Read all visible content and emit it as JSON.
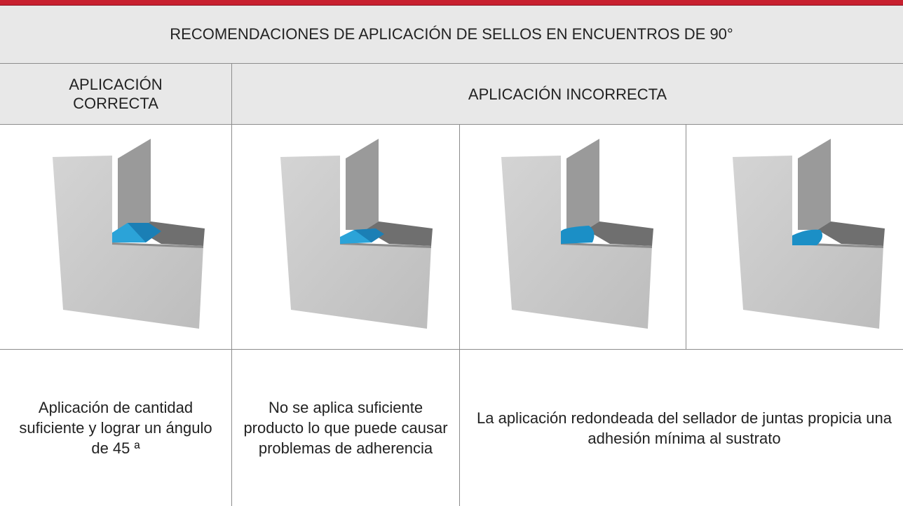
{
  "title": "RECOMENDACIONES DE APLICACIÓN DE SELLOS EN ENCUENTROS DE 90°",
  "headers": [
    "APLICACIÓN CORRECTA",
    "APLICACIÓN INCORRECTA"
  ],
  "descriptions": [
    "Aplicación de cantidad suficiente y lograr un ángulo de 45 ª",
    "No se aplica suficiente producto lo que puede causar problemas de adherencia",
    "La aplicación redondeada del sellador de juntas propicia una adhesión mínima al sustrato"
  ]
}
